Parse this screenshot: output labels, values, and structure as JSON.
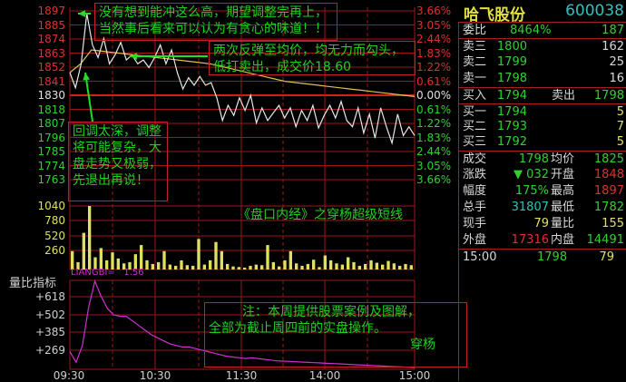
{
  "stock": {
    "name": "哈飞股份",
    "code": "600038"
  },
  "price_axis": {
    "left": [
      "1897",
      "1885",
      "1874",
      "1863",
      "1852",
      "1841",
      "1830",
      "1818",
      "1807",
      "1796",
      "1785",
      "1774",
      "1763"
    ],
    "right": [
      "3.66%",
      "3.05%",
      "2.44%",
      "1.83%",
      "1.22%",
      "0.61%",
      "0.00%",
      "0.61%",
      "1.22%",
      "1.83%",
      "2.44%",
      "3.05%",
      "3.66%"
    ]
  },
  "volume_axis": [
    "1040",
    "780",
    "520",
    "260"
  ],
  "liangbi": {
    "title": "量比指标",
    "label": "LIANGBI=",
    "value": "1.56",
    "axis": [
      "+618",
      "+502",
      "+385",
      "+269"
    ],
    "series": [
      2.6,
      1.9,
      3.0,
      5.5,
      7.2,
      6.2,
      5.4,
      5.0,
      4.9,
      4.9,
      4.6,
      4.3,
      4.0,
      3.7,
      3.5,
      3.3,
      3.1,
      3.0,
      2.9,
      2.9,
      2.8,
      2.7,
      2.6,
      2.5,
      2.4,
      2.3,
      2.25,
      2.2,
      2.15,
      2.2,
      2.15,
      2.1,
      2.05,
      2.0,
      1.98,
      1.96,
      1.94,
      1.92,
      1.9,
      1.88,
      1.86,
      1.84,
      1.82,
      1.8,
      1.78,
      1.76,
      1.74,
      1.72,
      1.7,
      1.68,
      1.66,
      1.64,
      1.62,
      1.6,
      1.58,
      1.56
    ]
  },
  "time_axis": [
    "09:30",
    "10:30",
    "11:30",
    "14:00",
    "15:00"
  ],
  "price_series": [
    18.48,
    18.36,
    18.55,
    18.95,
    18.7,
    18.6,
    18.75,
    18.55,
    18.62,
    18.72,
    18.58,
    18.62,
    18.55,
    18.58,
    18.52,
    18.6,
    18.7,
    18.55,
    18.66,
    18.48,
    18.35,
    18.44,
    18.38,
    18.45,
    18.38,
    18.4,
    18.28,
    18.1,
    18.22,
    18.14,
    18.28,
    18.18,
    18.3,
    18.08,
    18.2,
    18.1,
    18.16,
    18.22,
    18.12,
    18.2,
    18.05,
    18.18,
    18.1,
    18.22,
    18.04,
    18.14,
    18.22,
    18.12,
    18.25,
    18.1,
    18.05,
    18.2,
    18.0,
    18.15,
    17.96,
    18.2,
    18.05,
    17.92,
    18.15,
    17.98,
    18.05,
    17.98
  ],
  "avg_series": [
    18.48,
    18.55,
    18.66,
    18.65,
    18.64,
    18.63,
    18.62,
    18.61,
    18.6,
    18.59,
    18.58,
    18.57,
    18.56,
    18.55,
    18.53,
    18.51,
    18.49,
    18.47,
    18.45,
    18.43,
    18.41,
    18.4,
    18.39,
    18.38,
    18.37,
    18.36,
    18.35,
    18.34,
    18.33,
    18.32,
    18.31,
    18.3,
    18.29
  ],
  "volume_series": [
    300,
    120,
    600,
    1040,
    200,
    350,
    150,
    280,
    180,
    100,
    120,
    250,
    400,
    150,
    90,
    120,
    300,
    80,
    60,
    150,
    70,
    60,
    500,
    80,
    150,
    450,
    300,
    90,
    50,
    40,
    30,
    60,
    80,
    70,
    400,
    120,
    50,
    150,
    300,
    100,
    60,
    90,
    160,
    40,
    230,
    150,
    100,
    80,
    200,
    120,
    60,
    90,
    150,
    110,
    80,
    140,
    100,
    60,
    90,
    70
  ],
  "notes": {
    "n1": "没有想到能冲这么高，期望调整完再上，当然事后看来可以认为有贪心的味道！！",
    "n2": "两次反弹至均价，均无力而勾头，低打卖出，成交价18.60",
    "n3": "回调太深，调整将可能复杂，大盘走势又极弱，先退出再说！",
    "n4a": "注：本周提供股票案例及图解，",
    "n4b": "全部为截止周四前的实盘操作。",
    "n4c": "穿杨",
    "title": "《盘口内经》之穿杨超级短线"
  },
  "quote": {
    "weibi": {
      "label": "委比",
      "value": "8464%",
      "vol": "187"
    },
    "sells": [
      {
        "label": "卖三",
        "price": "1800",
        "vol": "162"
      },
      {
        "label": "卖二",
        "price": "1799",
        "vol": "25"
      },
      {
        "label": "卖一",
        "price": "1798",
        "vol": "16"
      }
    ],
    "buyin": {
      "label": "买入",
      "price": "1794",
      "label2": "卖出",
      "price2": "1798"
    },
    "buys": [
      {
        "label": "买一",
        "price": "1794",
        "vol": "5"
      },
      {
        "label": "买二",
        "price": "1793",
        "vol": "7"
      },
      {
        "label": "买三",
        "price": "1792",
        "vol": "5"
      }
    ],
    "stats": [
      {
        "l1": "成交",
        "v1": "1798",
        "l2": "均价",
        "v2": "1825",
        "c1": "#30d030",
        "c2": "#30d030"
      },
      {
        "l1": "涨跌",
        "v1": "▼ 032",
        "l2": "开盘",
        "v2": "1848",
        "c1": "#30d030",
        "c2": "#e03030"
      },
      {
        "l1": "幅度",
        "v1": "175%",
        "l2": "最高",
        "v2": "1897",
        "c1": "#30d030",
        "c2": "#e03030"
      },
      {
        "l1": "总手",
        "v1": "31807",
        "l2": "最低",
        "v2": "1782",
        "c1": "#30c0c0",
        "c2": "#30d030"
      },
      {
        "l1": "现手",
        "v1": "79",
        "l2": "量比",
        "v2": "155",
        "c1": "#e0e060",
        "c2": "#e0e060"
      },
      {
        "l1": "外盘",
        "v1": "17316",
        "l2": "内盘",
        "v2": "14491",
        "c1": "#e03030",
        "c2": "#30d030"
      }
    ],
    "tick": {
      "time": "15:00",
      "price": "1798",
      "vol": "79"
    }
  },
  "colors": {
    "grid": "#a01818",
    "price": "#e8e8e8",
    "avg": "#e0c050",
    "volume": "#e0e060",
    "liangbi": "#d030d0",
    "up": "#e03030",
    "down": "#30d030"
  }
}
